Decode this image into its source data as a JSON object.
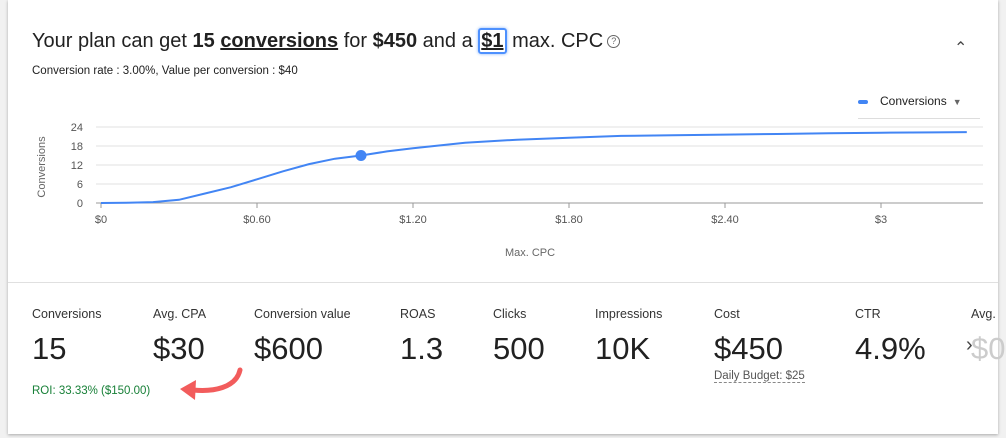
{
  "headline": {
    "prefix": "Your plan can get ",
    "conversions_count": "15",
    "conversions_word": "conversions",
    "mid1": " for ",
    "cost": "$450",
    "mid2": " and a ",
    "max_cpc": "$1",
    "suffix": " max. CPC",
    "help_icon": "help-circle-icon"
  },
  "subtitle": "Conversion rate : 3.00%, Value per conversion : $40",
  "collapse_icon": "chevron-up-icon",
  "legend": {
    "label": "Conversions",
    "color": "#4285f4"
  },
  "chart_data": {
    "type": "line",
    "xlabel": "Max. CPC",
    "ylabel": "Conversions",
    "xlim": [
      0,
      3.33
    ],
    "ylim": [
      0,
      24
    ],
    "x_ticks": [
      0,
      0.6,
      1.2,
      1.8,
      2.4,
      3
    ],
    "x_tick_labels": [
      "$0",
      "$0.60",
      "$1.20",
      "$1.80",
      "$2.40",
      "$3"
    ],
    "y_ticks": [
      0,
      6,
      12,
      18,
      24
    ],
    "y_tick_labels": [
      "0",
      "6",
      "12",
      "18",
      "24"
    ],
    "grid": true,
    "legend_position": "top-right",
    "series": [
      {
        "name": "Conversions",
        "color": "#4285f4",
        "x": [
          0,
          0.1,
          0.2,
          0.3,
          0.4,
          0.5,
          0.6,
          0.7,
          0.8,
          0.9,
          1.0,
          1.1,
          1.2,
          1.4,
          1.6,
          1.8,
          2.0,
          2.2,
          2.4,
          2.6,
          2.8,
          3.0,
          3.2,
          3.33
        ],
        "y": [
          0,
          0.1,
          0.3,
          1,
          3,
          5,
          7.5,
          10,
          12.3,
          14,
          15,
          16.3,
          17.3,
          19,
          20,
          20.6,
          21.2,
          21.4,
          21.6,
          21.8,
          22,
          22.2,
          22.3,
          22.4
        ]
      }
    ],
    "highlight": {
      "x": 1,
      "y": 15
    }
  },
  "metrics": [
    {
      "label": "Conversions",
      "value": "15"
    },
    {
      "label": "Avg. CPA",
      "value": "$30"
    },
    {
      "label": "Conversion value",
      "value": "$600"
    },
    {
      "label": "ROAS",
      "value": "1.3"
    },
    {
      "label": "Clicks",
      "value": "500"
    },
    {
      "label": "Impressions",
      "value": "10K"
    },
    {
      "label": "Cost",
      "value": "$450"
    },
    {
      "label": "CTR",
      "value": "4.9%"
    },
    {
      "label": "Avg.",
      "value": "$0"
    }
  ],
  "daily_budget": "Daily Budget: $25",
  "roi": "ROI: 33.33% ($150.00)",
  "next_icon": "chevron-right-icon",
  "annotation_color": "#f25c5c"
}
